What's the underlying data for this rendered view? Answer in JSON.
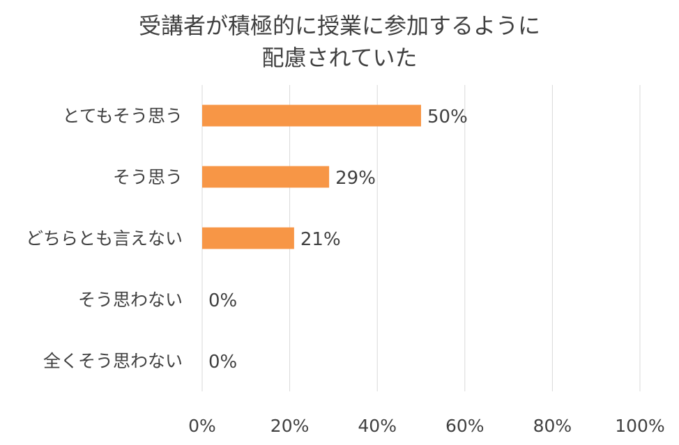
{
  "chart_data": {
    "type": "bar",
    "orientation": "horizontal",
    "title_lines": [
      "受講者が積極的に授業に参加するように",
      "配慮されていた"
    ],
    "categories": [
      "とてもそう思う",
      "そう思う",
      "どちらとも言えない",
      "そう思わない",
      "全くそう思わない"
    ],
    "values": [
      50,
      29,
      21,
      0,
      0
    ],
    "data_labels": [
      "50%",
      "29%",
      "21%",
      "0%",
      "0%"
    ],
    "xlim": [
      0,
      100
    ],
    "ticks": [
      0,
      20,
      40,
      60,
      80,
      100
    ],
    "tick_labels": [
      "0%",
      "20%",
      "40%",
      "60%",
      "80%",
      "100%"
    ],
    "grid": true,
    "legend": false,
    "bar_color": "#F79646",
    "grid_color": "#D9D9D9",
    "text_color": "#404040"
  }
}
